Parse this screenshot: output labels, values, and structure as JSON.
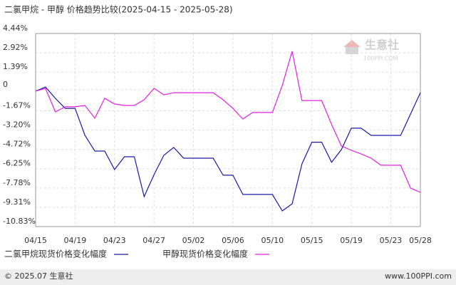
{
  "chart_data": {
    "type": "line",
    "title": "二氯甲烷 - 甲醇 价格趋势比较(2025-04-15 - 2025-05-28)",
    "categories": [
      "04/15",
      null,
      null,
      null,
      "04/19",
      null,
      null,
      null,
      "04/23",
      null,
      null,
      null,
      "04/27",
      null,
      null,
      null,
      "05/02",
      null,
      null,
      null,
      "05/06",
      null,
      null,
      null,
      "05/10",
      null,
      null,
      null,
      "05/15",
      null,
      null,
      null,
      "05/19",
      null,
      null,
      null,
      "05/23",
      null,
      null,
      "05/28"
    ],
    "series": [
      {
        "name": "二氯甲烷现货价格变化幅度",
        "color": "#1a1aa6",
        "values": [
          -0.12,
          0.21,
          -0.69,
          -1.48,
          -1.48,
          -3.62,
          -4.86,
          -4.86,
          -6.32,
          -5.31,
          -5.31,
          -8.46,
          -6.72,
          -5.19,
          -4.57,
          -5.42,
          -5.42,
          -5.42,
          -5.42,
          -6.77,
          -6.77,
          -8.29,
          -8.29,
          -8.29,
          -8.29,
          -9.59,
          -9.03,
          -5.87,
          -4.16,
          -4.16,
          -5.74,
          -4.74,
          -3.05,
          -3.05,
          -3.62,
          -3.62,
          -3.62,
          -3.62,
          -1.93,
          -0.24
        ]
      },
      {
        "name": "甲醇现货价格变化幅度",
        "color": "#e020e0",
        "values": [
          -0.12,
          0.1,
          -1.76,
          -1.36,
          -1.36,
          -1.25,
          -2.26,
          -0.69,
          -1.14,
          -1.25,
          -1.25,
          -0.8,
          0.1,
          -0.41,
          -0.24,
          -0.24,
          -0.24,
          -0.24,
          -0.24,
          -0.8,
          -1.48,
          -2.32,
          -1.81,
          -1.81,
          -1.81,
          0.33,
          3.03,
          -0.86,
          -0.86,
          -0.86,
          -2.76,
          -4.46,
          -4.8,
          -5.08,
          -5.42,
          -5.98,
          -5.98,
          -5.98,
          -7.79,
          -8.12
        ]
      }
    ],
    "ylim": [
      -10.83,
      4.44
    ],
    "yticks": [
      {
        "value": 4.44,
        "label": "4.44%"
      },
      {
        "value": 2.92,
        "label": "2.92%"
      },
      {
        "value": 1.39,
        "label": "1.39%"
      },
      0,
      {
        "value": -1.67,
        "label": "-1.67%"
      },
      {
        "value": -3.2,
        "label": "-3.20%"
      },
      {
        "value": -4.72,
        "label": "-4.72%"
      },
      {
        "value": -6.25,
        "label": "-6.25%"
      },
      {
        "value": -7.78,
        "label": "-7.78%"
      },
      {
        "value": -9.31,
        "label": "-9.31%"
      },
      {
        "value": -10.83,
        "label": "-10.83%"
      }
    ],
    "grid": true,
    "watermark": {
      "name": "生意社",
      "site": "100PPI.COM"
    },
    "footer": {
      "left": "© 2025.07 生意社",
      "right": "www.100PPI.com"
    }
  }
}
